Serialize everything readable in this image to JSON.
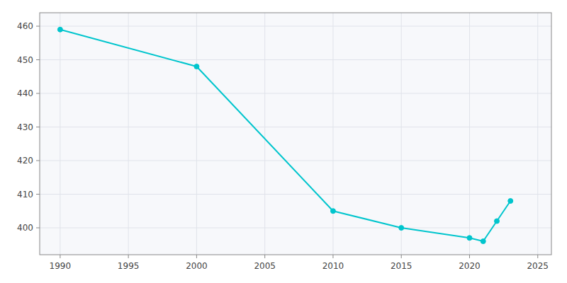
{
  "chart_data": {
    "type": "line",
    "x": [
      1990,
      2000,
      2010,
      2015,
      2020,
      2021,
      2022,
      2023
    ],
    "values": [
      459,
      448,
      405,
      400,
      397,
      396,
      402,
      408
    ],
    "color": "#00C5CD",
    "marker": "circle",
    "xlim": [
      1988.5,
      2026
    ],
    "xticks": [
      1990,
      1995,
      2000,
      2005,
      2010,
      2015,
      2020,
      2025
    ],
    "ylim": [
      392,
      464
    ],
    "yticks": [
      400,
      410,
      420,
      430,
      440,
      450,
      460
    ],
    "grid": true
  }
}
